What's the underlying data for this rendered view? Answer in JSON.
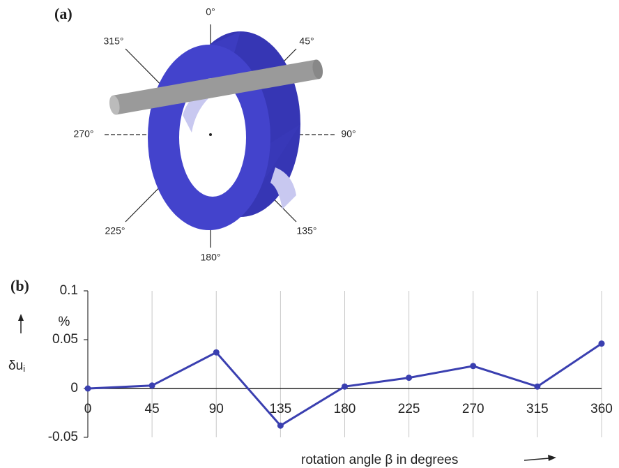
{
  "diagram": {
    "panel_label": "(a)",
    "angle_labels": [
      "0°",
      "45°",
      "90°",
      "135°",
      "180°",
      "225°",
      "270°",
      "315°"
    ]
  },
  "chart_data": {
    "type": "line",
    "panel_label": "(b)",
    "x": [
      0,
      45,
      90,
      135,
      180,
      225,
      270,
      315,
      360
    ],
    "series": [
      {
        "color": "#3a3fb0",
        "values": [
          0,
          0.003,
          0.037,
          -0.038,
          0.002,
          0.011,
          0.023,
          0.002,
          0.046
        ]
      }
    ],
    "xlim": [
      0,
      360
    ],
    "xticks": [
      0,
      45,
      90,
      135,
      180,
      225,
      270,
      315,
      360
    ],
    "ylim": [
      -0.05,
      0.1
    ],
    "yticks": [
      -0.05,
      0,
      0.05,
      0.1
    ],
    "y_unit": "%",
    "ylabel": "δu",
    "ylabel_subscript": "i",
    "xlabel": "rotation angle β in degrees",
    "grid": true
  }
}
